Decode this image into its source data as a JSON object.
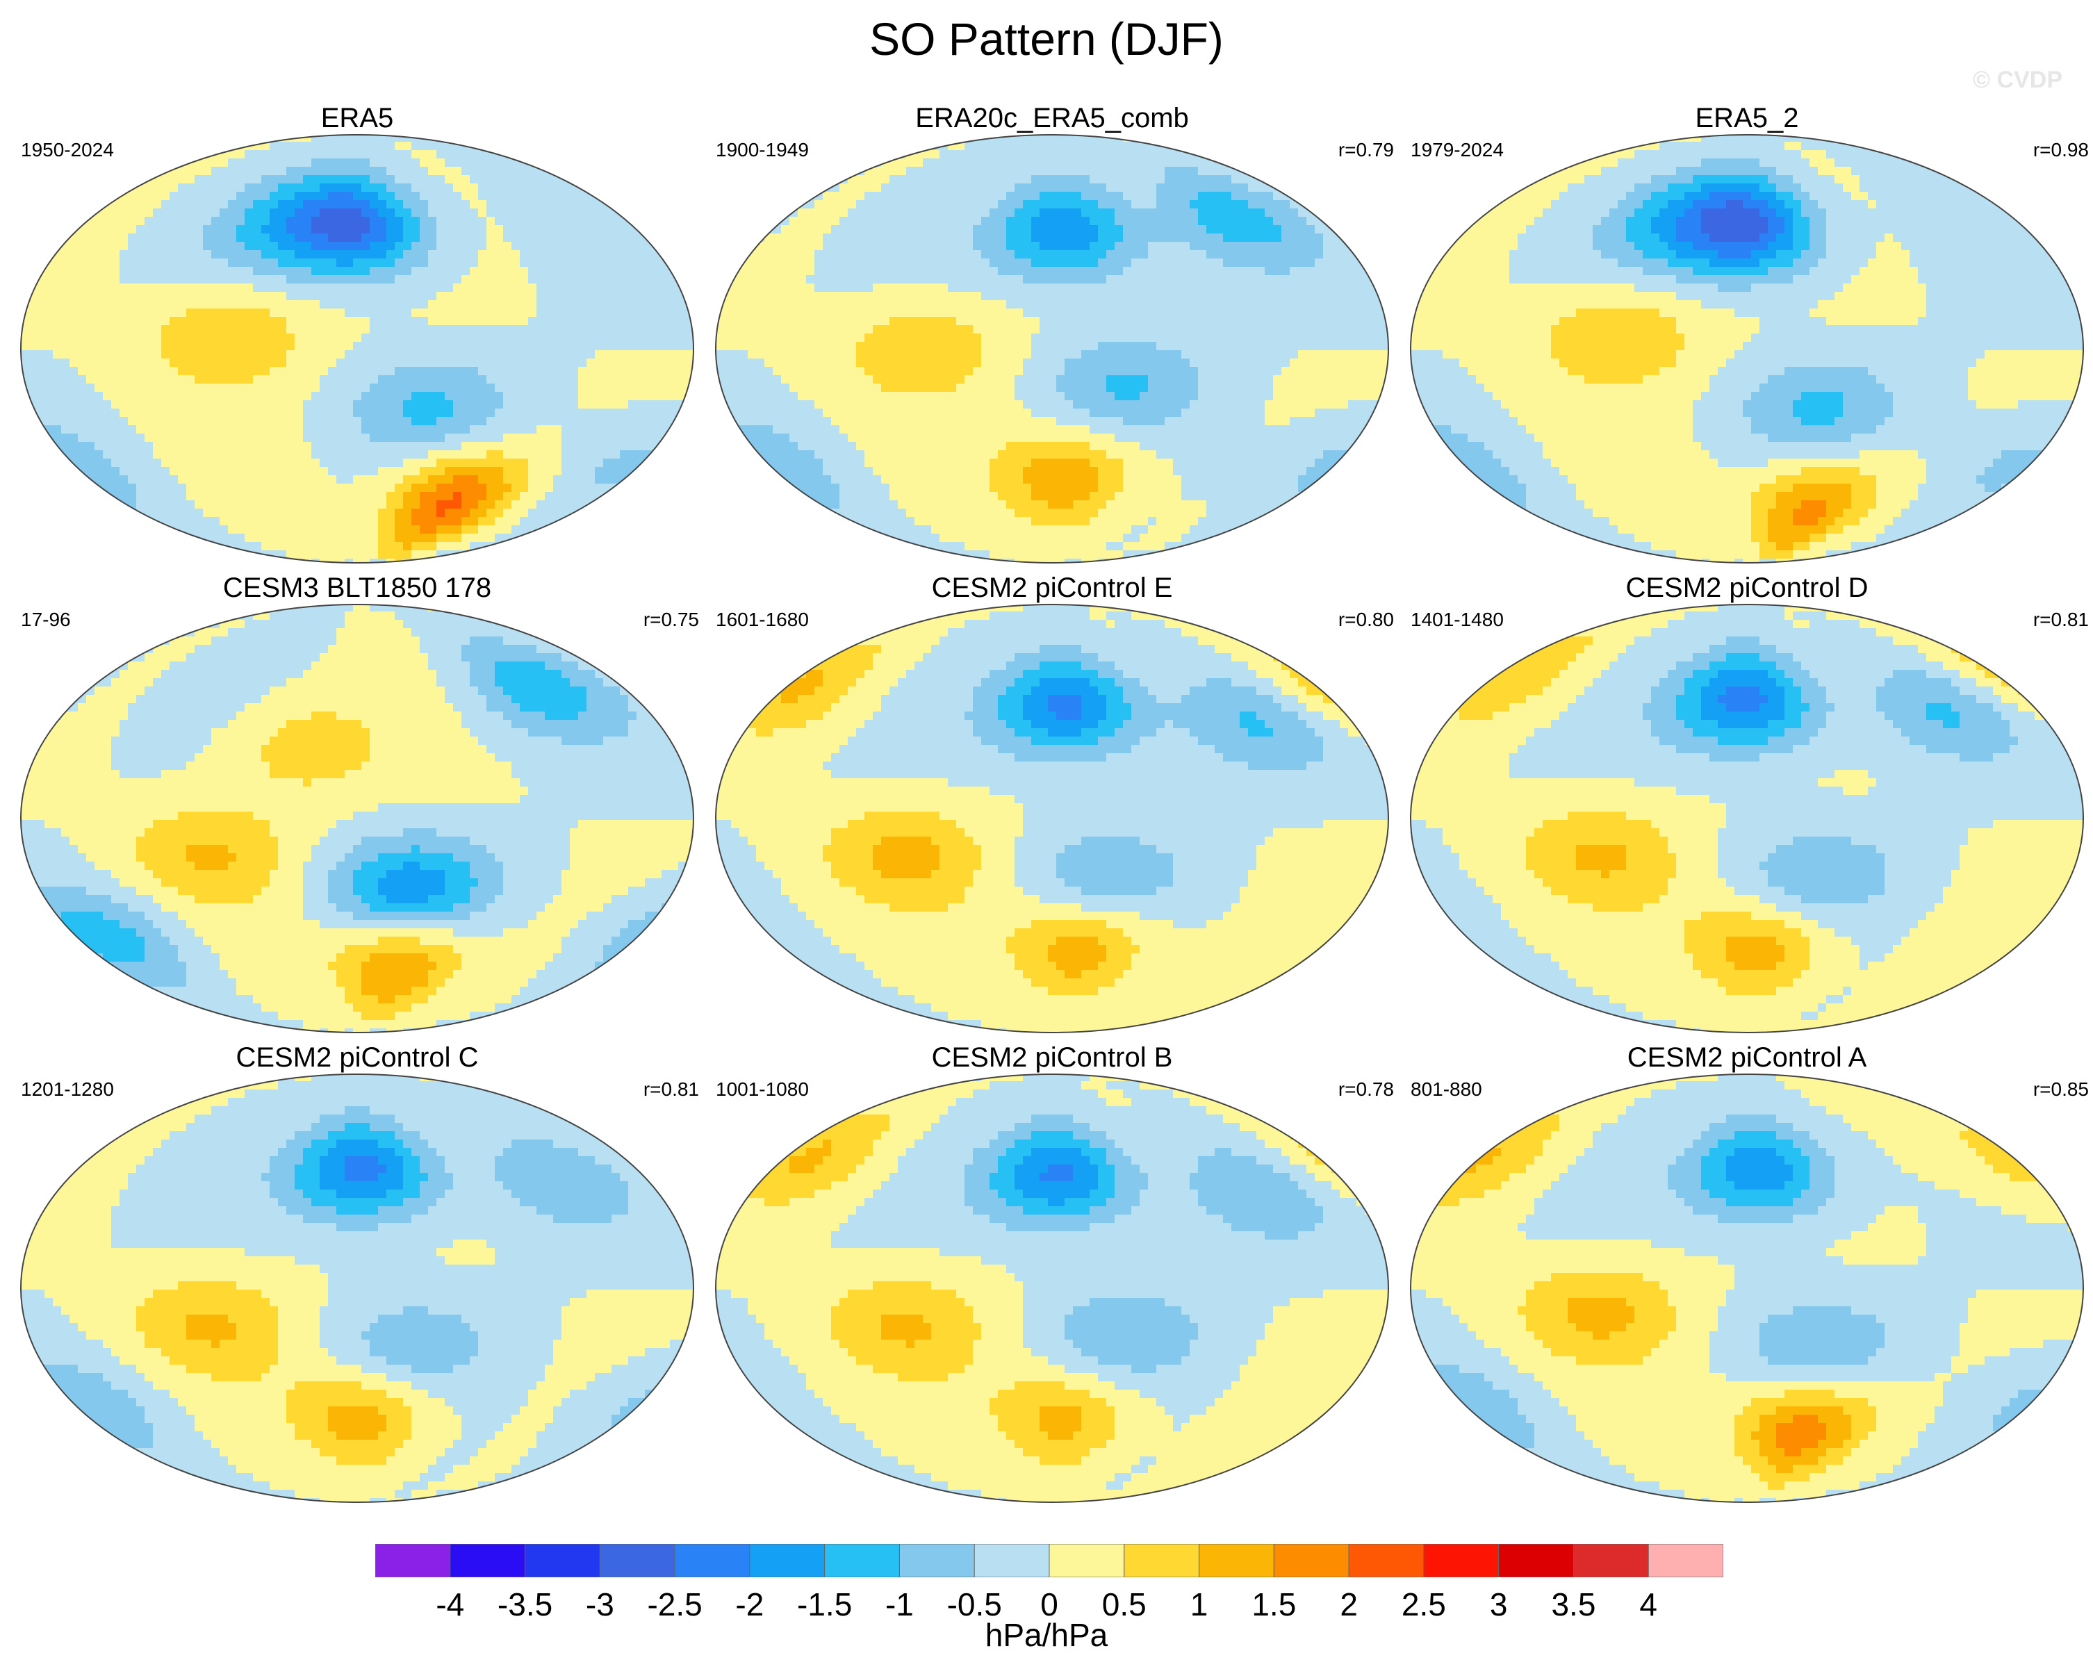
{
  "title": "SO Pattern (DJF)",
  "watermark": "© CVDP",
  "panels": [
    {
      "name": "ERA5",
      "period": "1950-2024",
      "r": "",
      "centers": [
        {
          "lon": -160,
          "lat": 52,
          "v": -2.5
        },
        {
          "lon": -90,
          "lat": -65,
          "v": 2.2
        },
        {
          "lon": 130,
          "lat": 5,
          "v": 1.0
        },
        {
          "lon": -120,
          "lat": -25,
          "v": -1.0
        },
        {
          "lon": 150,
          "lat": 55,
          "v": -1.0
        },
        {
          "lon": 10,
          "lat": -50,
          "v": -0.8
        }
      ]
    },
    {
      "name": "ERA20c_ERA5_comb",
      "period": "1900-1949",
      "r": "r=0.79",
      "centers": [
        {
          "lon": -150,
          "lat": 50,
          "v": -2.0
        },
        {
          "lon": -150,
          "lat": -55,
          "v": 1.5
        },
        {
          "lon": 130,
          "lat": 0,
          "v": 0.9
        },
        {
          "lon": -120,
          "lat": -15,
          "v": -1.0
        },
        {
          "lon": -40,
          "lat": 55,
          "v": -1.2
        },
        {
          "lon": 20,
          "lat": -50,
          "v": -0.8
        }
      ]
    },
    {
      "name": "ERA5_2",
      "period": "1979-2024",
      "r": "r=0.98",
      "centers": [
        {
          "lon": -160,
          "lat": 52,
          "v": -2.7
        },
        {
          "lon": -110,
          "lat": -68,
          "v": 1.8
        },
        {
          "lon": 130,
          "lat": 5,
          "v": 1.0
        },
        {
          "lon": -120,
          "lat": -25,
          "v": -1.0
        },
        {
          "lon": 150,
          "lat": 55,
          "v": -1.0
        },
        {
          "lon": 10,
          "lat": -50,
          "v": -0.8
        }
      ]
    },
    {
      "name": "CESM3 BLT1850 178",
      "period": "17-96",
      "r": "r=0.75",
      "centers": [
        {
          "lon": -130,
          "lat": -30,
          "v": -1.8
        },
        {
          "lon": -130,
          "lat": -62,
          "v": 1.8
        },
        {
          "lon": 120,
          "lat": -15,
          "v": 1.0
        },
        {
          "lon": -40,
          "lat": 55,
          "v": -1.3
        },
        {
          "lon": 170,
          "lat": 30,
          "v": 0.8
        },
        {
          "lon": 40,
          "lat": -50,
          "v": -1.2
        }
      ]
    },
    {
      "name": "CESM2 piControl E",
      "period": "1601-1680",
      "r": "r=0.80",
      "centers": [
        {
          "lon": -150,
          "lat": 48,
          "v": -2.3
        },
        {
          "lon": -140,
          "lat": -55,
          "v": 1.5
        },
        {
          "lon": 120,
          "lat": -15,
          "v": 1.1
        },
        {
          "lon": -40,
          "lat": 40,
          "v": -1.0
        },
        {
          "lon": -130,
          "lat": -25,
          "v": -0.9
        },
        {
          "lon": 30,
          "lat": 55,
          "v": 1.0
        }
      ]
    },
    {
      "name": "CESM2 piControl D",
      "period": "1401-1480",
      "r": "r=0.81",
      "centers": [
        {
          "lon": -160,
          "lat": 50,
          "v": -2.3
        },
        {
          "lon": -150,
          "lat": -55,
          "v": 1.4
        },
        {
          "lon": 120,
          "lat": -15,
          "v": 1.0
        },
        {
          "lon": -40,
          "lat": 45,
          "v": -1.0
        },
        {
          "lon": -120,
          "lat": -25,
          "v": -0.9
        },
        {
          "lon": 30,
          "lat": 60,
          "v": 0.9
        }
      ]
    },
    {
      "name": "CESM2 piControl C",
      "period": "1201-1280",
      "r": "r=0.81",
      "centers": [
        {
          "lon": -155,
          "lat": 50,
          "v": -2.3
        },
        {
          "lon": -155,
          "lat": -55,
          "v": 1.4
        },
        {
          "lon": 120,
          "lat": -15,
          "v": 1.0
        },
        {
          "lon": -130,
          "lat": -25,
          "v": -0.8
        },
        {
          "lon": -40,
          "lat": 45,
          "v": -0.8
        },
        {
          "lon": 30,
          "lat": -50,
          "v": -0.8
        }
      ]
    },
    {
      "name": "CESM2 piControl B",
      "period": "1001-1080",
      "r": "r=0.78",
      "centers": [
        {
          "lon": -155,
          "lat": 48,
          "v": -2.2
        },
        {
          "lon": -150,
          "lat": -55,
          "v": 1.3
        },
        {
          "lon": 120,
          "lat": -15,
          "v": 1.0
        },
        {
          "lon": -120,
          "lat": -20,
          "v": -0.9
        },
        {
          "lon": -40,
          "lat": 40,
          "v": -0.9
        },
        {
          "lon": 40,
          "lat": 55,
          "v": 1.0
        }
      ]
    },
    {
      "name": "CESM2 piControl A",
      "period": "801-880",
      "r": "r=0.85",
      "centers": [
        {
          "lon": -150,
          "lat": 50,
          "v": -2.0
        },
        {
          "lon": -120,
          "lat": -60,
          "v": 2.0
        },
        {
          "lon": 120,
          "lat": -10,
          "v": 1.1
        },
        {
          "lon": -120,
          "lat": -25,
          "v": -0.9
        },
        {
          "lon": 20,
          "lat": 55,
          "v": 0.9
        },
        {
          "lon": 20,
          "lat": -50,
          "v": -0.8
        }
      ]
    }
  ],
  "colorbar": {
    "labels": [
      "-4",
      "-3.5",
      "-3",
      "-2.5",
      "-2",
      "-1.5",
      "-1",
      "-0.5",
      "0",
      "0.5",
      "1",
      "1.5",
      "2",
      "2.5",
      "3",
      "3.5",
      "4"
    ],
    "levels": [
      -4,
      -3.5,
      -3,
      -2.5,
      -2,
      -1.5,
      -1,
      -0.5,
      0,
      0.5,
      1,
      1.5,
      2,
      2.5,
      3,
      3.5,
      4
    ],
    "colors": [
      "#8b20e6",
      "#2a0df5",
      "#2137f0",
      "#3b67e3",
      "#2a82f7",
      "#14a0f5",
      "#27c0f5",
      "#84c9ed",
      "#b9e0f2",
      "#fdf79a",
      "#ffd932",
      "#fbb505",
      "#fd8c00",
      "#fe5805",
      "#fd1402",
      "#dd0002",
      "#dd2a2a",
      "#feb0b0"
    ],
    "units": "hPa/hPa"
  }
}
